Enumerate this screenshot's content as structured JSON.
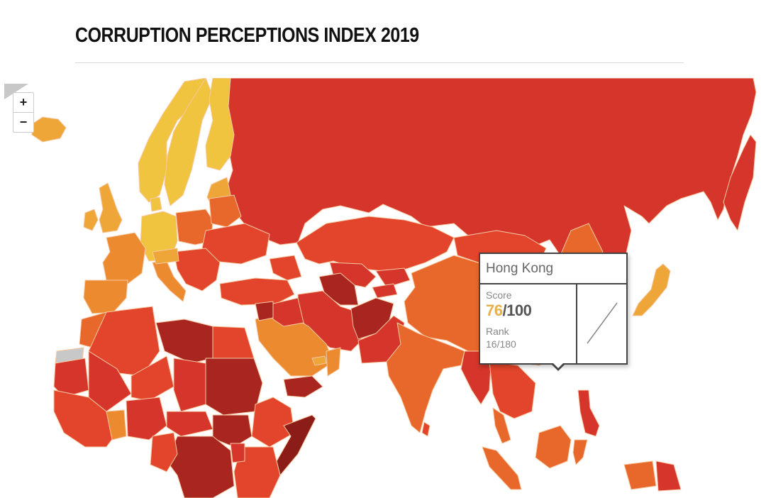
{
  "page": {
    "title": "CORRUPTION PERCEPTIONS INDEX 2019"
  },
  "map_controls": {
    "zoom_in_label": "+",
    "zoom_out_label": "−"
  },
  "tooltip": {
    "country": "Hong Kong",
    "score_label": "Score",
    "score_value": "76",
    "score_max": "/100",
    "rank_label": "Rank",
    "rank_value": "16/180",
    "sparkline_icon": "trend-line-icon"
  },
  "colors": {
    "very_clean": "#f0c43f",
    "clean": "#efa638",
    "mid_high": "#ec8a2f",
    "mid": "#e8672a",
    "mid_low": "#e2452b",
    "low": "#d6352b",
    "very_low": "#a8261f",
    "highly_corrupt": "#8c1c17",
    "no_data": "#c8c8c8",
    "score_highlight": "#e8b04a"
  }
}
